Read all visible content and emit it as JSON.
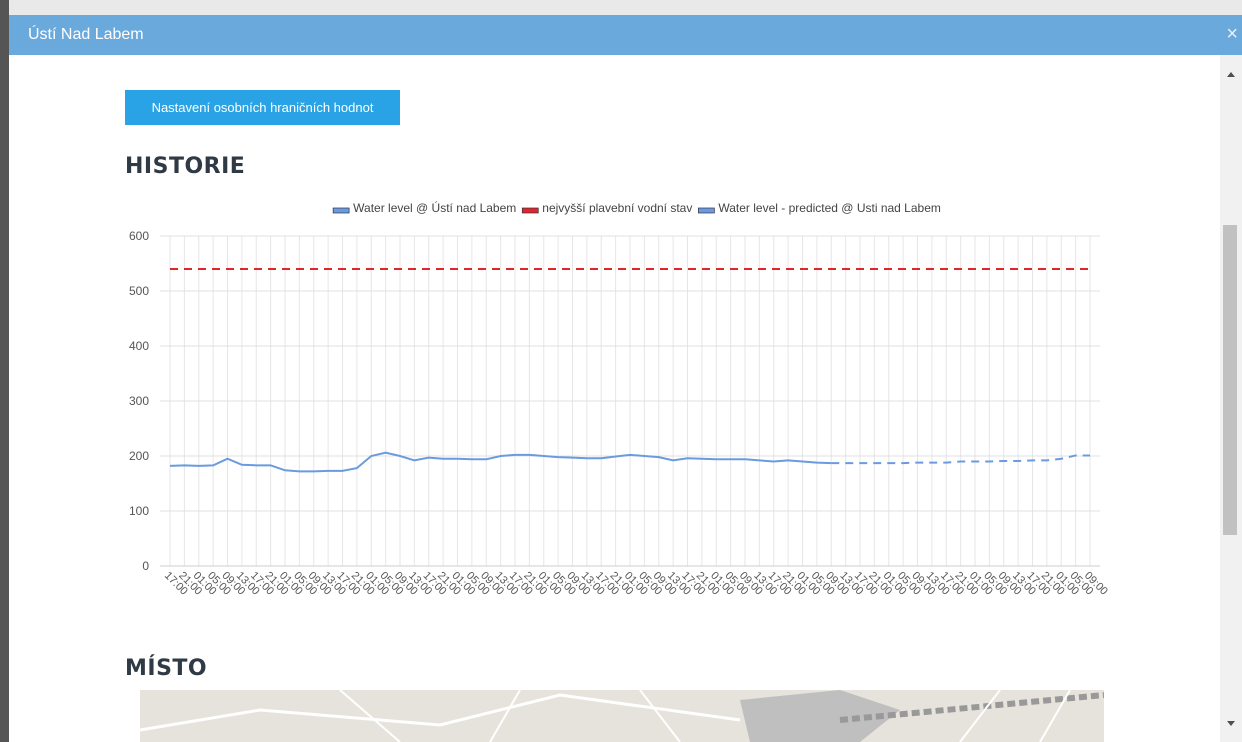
{
  "modal": {
    "title": "Ústí Nad Labem",
    "close": "×"
  },
  "button": "Nastavení osobních hraničních hodnot",
  "sections": [
    "HISTORIE",
    "MÍSTO"
  ],
  "chart_data": {
    "type": "line",
    "categories": [
      "17:00",
      "21:00",
      "01:00",
      "05:00",
      "09:00",
      "13:00",
      "17:00",
      "21:00",
      "01:00",
      "05:00",
      "09:00",
      "13:00",
      "17:00",
      "21:00",
      "01:00",
      "05:00",
      "09:00",
      "13:00",
      "17:00",
      "21:00",
      "01:00",
      "05:00",
      "09:00",
      "13:00",
      "17:00",
      "21:00",
      "01:00",
      "05:00",
      "09:00",
      "13:00",
      "17:00",
      "21:00",
      "01:00",
      "05:00",
      "09:00",
      "13:00",
      "17:00",
      "21:00",
      "01:00",
      "05:00",
      "09:00",
      "13:00",
      "17:00",
      "21:00",
      "01:00",
      "05:00",
      "09:00",
      "13:00",
      "17:00",
      "21:00",
      "01:00",
      "05:00",
      "09:00",
      "13:00",
      "17:00",
      "21:00",
      "01:00",
      "05:00",
      "09:00",
      "13:00",
      "17:00",
      "21:00",
      "01:00",
      "05:00",
      "09:00"
    ],
    "series": [
      {
        "name": "Water level @ Ústí nad Labem",
        "color": "#6a9be0",
        "dashed": false,
        "values": [
          182,
          183,
          182,
          183,
          195,
          184,
          183,
          183,
          174,
          172,
          172,
          173,
          173,
          178,
          200,
          206,
          200,
          192,
          197,
          195,
          195,
          194,
          194,
          200,
          202,
          202,
          200,
          198,
          197,
          196,
          196,
          199,
          202,
          200,
          198,
          192,
          196,
          195,
          194,
          194,
          194,
          192,
          190,
          192,
          190,
          188,
          187,
          null,
          null,
          null,
          null,
          null,
          null,
          null,
          null,
          null,
          null,
          null,
          null,
          null,
          null,
          null,
          null,
          null,
          null
        ]
      },
      {
        "name": "nejvyšší plavební vodní stav",
        "color": "#e0262b",
        "dashed": true,
        "values": [
          540,
          540,
          540,
          540,
          540,
          540,
          540,
          540,
          540,
          540,
          540,
          540,
          540,
          540,
          540,
          540,
          540,
          540,
          540,
          540,
          540,
          540,
          540,
          540,
          540,
          540,
          540,
          540,
          540,
          540,
          540,
          540,
          540,
          540,
          540,
          540,
          540,
          540,
          540,
          540,
          540,
          540,
          540,
          540,
          540,
          540,
          540,
          540,
          540,
          540,
          540,
          540,
          540,
          540,
          540,
          540,
          540,
          540,
          540,
          540,
          540,
          540,
          540,
          540,
          540
        ]
      },
      {
        "name": "Water level - predicted @ Usti nad Labem",
        "color": "#6a9be0",
        "dashed": true,
        "values": [
          null,
          null,
          null,
          null,
          null,
          null,
          null,
          null,
          null,
          null,
          null,
          null,
          null,
          null,
          null,
          null,
          null,
          null,
          null,
          null,
          null,
          null,
          null,
          null,
          null,
          null,
          null,
          null,
          null,
          null,
          null,
          null,
          null,
          null,
          null,
          null,
          null,
          null,
          null,
          null,
          null,
          null,
          null,
          null,
          null,
          null,
          187,
          187,
          187,
          187,
          187,
          187,
          188,
          188,
          188,
          190,
          190,
          190,
          191,
          191,
          192,
          192,
          195,
          201,
          201
        ]
      }
    ],
    "ylim": [
      0,
      600
    ],
    "yticks": [
      0,
      100,
      200,
      300,
      400,
      500,
      600
    ],
    "grid": true,
    "legend": "top"
  }
}
